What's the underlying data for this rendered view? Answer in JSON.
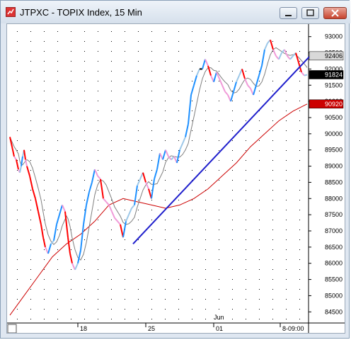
{
  "window": {
    "title": "JTPXC - TOPIX Index, 15 Min",
    "buttons": [
      "minimize",
      "maximize",
      "close"
    ]
  },
  "chart_data": {
    "type": "line",
    "title": "JTPXC - TOPIX Index, 15 Min",
    "y_ticks": [
      "93000",
      "92500",
      "92000",
      "91500",
      "91000",
      "90500",
      "90000",
      "89500",
      "89000",
      "88500",
      "88000",
      "87500",
      "87000",
      "86500",
      "86000",
      "85500",
      "85000",
      "84500"
    ],
    "x_ticks": [
      "18",
      "25",
      "01",
      "8-09:00"
    ],
    "x_month_label": "Jun",
    "ylim": [
      84200,
      93300
    ],
    "price_label": "92406",
    "ma_fast_label": "91824",
    "ma_slow_label": "90920",
    "grid": true,
    "colors": {
      "price_up_strong": "#1e90ff",
      "price_up_weak": "#9cc7e8",
      "price_down_strong": "#ff0000",
      "price_down_weak": "#f09ad8",
      "price_neutral": "#000000",
      "ma_fast": "#7f7f7f",
      "ma_slow": "#cc0000",
      "trendline": "#1f1fcc",
      "grid_dot": "#000000"
    },
    "series": [
      {
        "x": [
          0,
          3,
          6,
          9,
          12,
          14,
          16,
          18,
          20,
          22,
          24,
          28,
          32,
          36,
          40,
          44,
          47,
          50,
          54,
          58,
          62,
          66,
          70,
          74,
          78,
          80,
          82,
          85,
          88,
          92,
          96,
          100,
          104,
          108,
          112,
          116,
          120,
          124,
          128,
          132,
          136,
          140,
          144,
          148,
          152,
          156,
          160,
          164,
          168,
          172,
          176,
          180,
          184,
          188,
          192,
          196,
          200,
          204,
          208,
          212,
          216,
          220,
          224,
          228,
          232,
          236,
          240,
          244,
          248,
          252,
          256,
          260,
          264,
          268,
          272,
          276,
          280,
          284,
          288,
          292,
          296,
          300,
          304,
          308,
          312,
          316,
          320,
          324,
          328,
          332,
          336,
          340,
          344,
          348,
          352,
          356,
          360,
          364,
          368,
          372,
          376,
          380,
          384,
          388,
          392,
          396,
          400,
          404,
          408,
          412,
          416,
          420
        ],
        "y": [
          89900,
          89600,
          89300,
          89200,
          88900,
          88800,
          89000,
          89300,
          89500,
          89200,
          89000,
          88700,
          88300,
          88000,
          87600,
          87200,
          86800,
          86500,
          86300,
          86600,
          86700,
          87200,
          87500,
          87800,
          87600,
          87200,
          86800,
          86300,
          86000,
          85800,
          86000,
          86400,
          87200,
          87800,
          88200,
          88500,
          88900,
          88700,
          88600,
          88000,
          87900,
          87800,
          87600,
          87400,
          87300,
          87200,
          86800,
          87300,
          87500,
          87700,
          87800,
          88400,
          88600,
          88800,
          88500,
          88300,
          88000,
          88600,
          88900,
          89400,
          89200,
          89500,
          89300,
          89200,
          89300,
          89100,
          89500,
          89700,
          89900,
          90300,
          91200,
          91500,
          91800,
          92000,
          92000,
          92300,
          92100,
          91800,
          91600,
          91900,
          91700,
          91500,
          91300,
          91200,
          91000,
          91300,
          91600,
          91800,
          92000,
          91700,
          91500,
          91400,
          91200,
          91500,
          91800,
          92100,
          92600,
          92800,
          92900,
          92600,
          92400,
          92300,
          92500,
          92600,
          92400,
          92300,
          92400,
          92500,
          92200,
          91900,
          91800,
          91824
        ],
        "name": ""
      },
      {
        "x": [
          0,
          20,
          40,
          60,
          80,
          100,
          120,
          140,
          160,
          180,
          200,
          220,
          240,
          260,
          280,
          300,
          320,
          340,
          360,
          380,
          400,
          420
        ],
        "y": [
          84400,
          85000,
          85600,
          86200,
          86600,
          86900,
          87300,
          87800,
          88000,
          87900,
          87800,
          87700,
          87800,
          88000,
          88300,
          88700,
          89100,
          89600,
          90000,
          90400,
          90700,
          90920
        ],
        "name": ""
      }
    ]
  }
}
